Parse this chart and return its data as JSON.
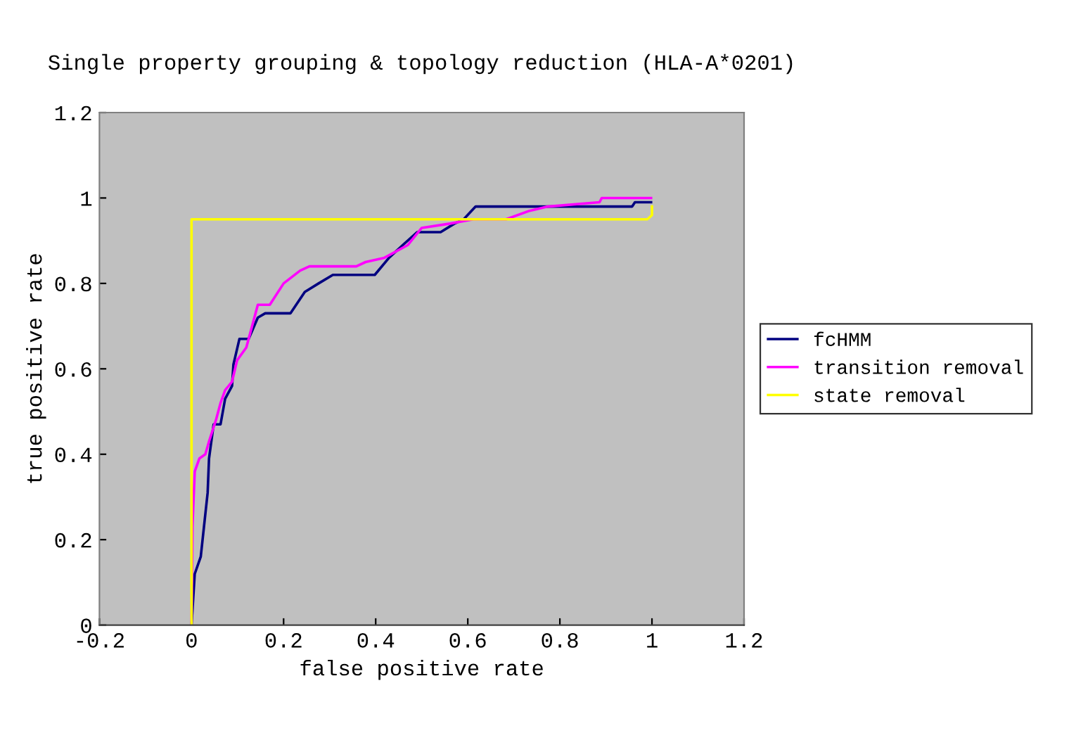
{
  "chart_data": {
    "type": "line",
    "title": "Single property grouping & topology reduction (HLA-A*0201)",
    "xlabel": "false positive rate",
    "ylabel": "true positive rate",
    "xlim": [
      -0.2,
      1.2
    ],
    "xticks": [
      {
        "value": -0.2,
        "label": "-0.2"
      },
      0,
      0.2,
      0.4,
      0.6,
      0.8,
      1,
      1.2
    ],
    "ylim": [
      0,
      1.2
    ],
    "yticks": [
      0,
      0.2,
      0.4,
      0.6,
      0.8,
      1,
      1.2
    ],
    "grid": false,
    "legend": "right",
    "marker": "none",
    "line_style": "solid",
    "series": [
      {
        "name": "fcHMM",
        "color": "#000080",
        "x": [
          0,
          0.007,
          0.02,
          0.027,
          0.035,
          0.038,
          0.048,
          0.063,
          0.073,
          0.088,
          0.091,
          0.104,
          0.124,
          0.144,
          0.16,
          0.215,
          0.246,
          0.276,
          0.307,
          0.398,
          0.429,
          0.459,
          0.49,
          0.541,
          0.571,
          0.591,
          0.617,
          0.957,
          0.963,
          0.998
        ],
        "values": [
          0,
          0.12,
          0.16,
          0.23,
          0.31,
          0.39,
          0.47,
          0.47,
          0.53,
          0.56,
          0.61,
          0.67,
          0.67,
          0.72,
          0.73,
          0.73,
          0.78,
          0.8,
          0.82,
          0.82,
          0.86,
          0.89,
          0.92,
          0.92,
          0.94,
          0.95,
          0.98,
          0.98,
          0.99,
          0.99
        ]
      },
      {
        "name": "transition removal",
        "color": "#ff00ff",
        "x": [
          0,
          0.002,
          0.007,
          0.017,
          0.03,
          0.038,
          0.053,
          0.063,
          0.073,
          0.088,
          0.099,
          0.119,
          0.144,
          0.17,
          0.2,
          0.236,
          0.256,
          0.358,
          0.378,
          0.419,
          0.47,
          0.5,
          0.561,
          0.612,
          0.683,
          0.734,
          0.774,
          0.886,
          0.891,
          0.998
        ],
        "values": [
          0,
          0.23,
          0.36,
          0.39,
          0.4,
          0.43,
          0.48,
          0.52,
          0.55,
          0.57,
          0.62,
          0.65,
          0.75,
          0.75,
          0.8,
          0.83,
          0.84,
          0.84,
          0.85,
          0.86,
          0.89,
          0.93,
          0.94,
          0.95,
          0.95,
          0.97,
          0.98,
          0.99,
          1.0,
          1.0
        ]
      },
      {
        "name": "state removal",
        "color": "#ffff00",
        "x": [
          0,
          0,
          0.99,
          1,
          1
        ],
        "values": [
          0,
          0.95,
          0.95,
          0.96,
          0.98
        ]
      }
    ]
  }
}
